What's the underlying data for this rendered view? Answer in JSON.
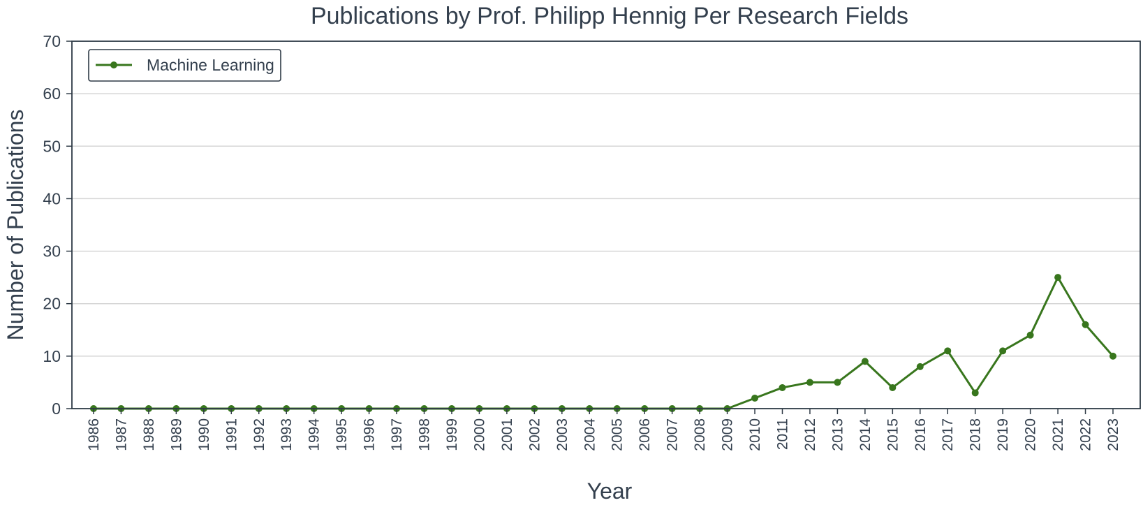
{
  "chart_data": {
    "type": "line",
    "title": "Publications by Prof. Philipp Hennig Per Research Fields",
    "xlabel": "Year",
    "ylabel": "Number of Publications",
    "x": [
      "1986",
      "1987",
      "1988",
      "1989",
      "1990",
      "1991",
      "1992",
      "1993",
      "1994",
      "1995",
      "1996",
      "1997",
      "1998",
      "1999",
      "2000",
      "2001",
      "2002",
      "2003",
      "2004",
      "2005",
      "2006",
      "2007",
      "2008",
      "2009",
      "2010",
      "2011",
      "2012",
      "2013",
      "2014",
      "2015",
      "2016",
      "2017",
      "2018",
      "2019",
      "2020",
      "2021",
      "2022",
      "2023"
    ],
    "ylim": [
      0,
      70
    ],
    "yticks": [
      "0",
      "10",
      "20",
      "30",
      "40",
      "50",
      "60",
      "70"
    ],
    "grid": "horizontal",
    "legend": "top-left",
    "series": [
      {
        "name": "Machine Learning",
        "color": "#38761d",
        "values": [
          0,
          0,
          0,
          0,
          0,
          0,
          0,
          0,
          0,
          0,
          0,
          0,
          0,
          0,
          0,
          0,
          0,
          0,
          0,
          0,
          0,
          0,
          0,
          0,
          2,
          4,
          5,
          5,
          9,
          4,
          8,
          11,
          3,
          11,
          14,
          25,
          16,
          10
        ]
      }
    ]
  }
}
